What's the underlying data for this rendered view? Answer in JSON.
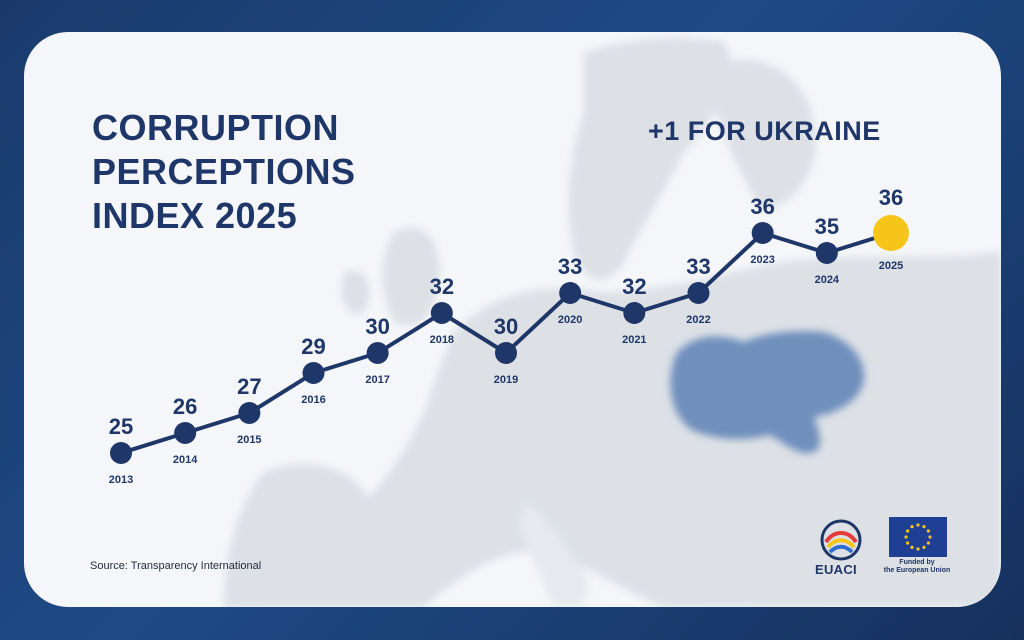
{
  "title_lines": [
    "CORRUPTION",
    "PERCEPTIONS",
    "INDEX 2025"
  ],
  "headline": "+1 FOR UKRAINE",
  "source": "Source: Transparency International",
  "logos": {
    "euaci": "EUACI",
    "eu_caption_line1": "Funded by",
    "eu_caption_line2": "the European Union"
  },
  "colors": {
    "navy": "#1f3768",
    "highlight": "#f6c51a",
    "ukraine": "#6f8fbd",
    "map": "#dde1e6"
  },
  "chart_data": {
    "type": "line",
    "title": "CORRUPTION PERCEPTIONS INDEX 2025",
    "x": [
      "2013",
      "2014",
      "2015",
      "2016",
      "2017",
      "2018",
      "2019",
      "2020",
      "2021",
      "2022",
      "2023",
      "2024",
      "2025"
    ],
    "series": [
      {
        "values": [
          25,
          26,
          27,
          29,
          30,
          32,
          30,
          33,
          32,
          33,
          36,
          35,
          36
        ]
      }
    ],
    "highlight_point": "2025",
    "data_labels": true,
    "grid": false,
    "legend": "none"
  }
}
